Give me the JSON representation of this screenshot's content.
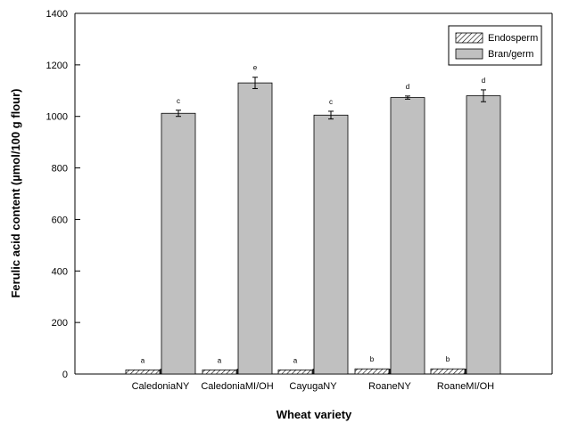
{
  "chart_data": {
    "type": "bar",
    "xlabel": "Wheat variety",
    "ylabel": "Ferulic acid content (µmol/100 g flour)",
    "ylim": [
      0,
      1400
    ],
    "yticks": [
      0,
      200,
      400,
      600,
      800,
      1000,
      1200,
      1400
    ],
    "grid": false,
    "legend_position": "top-right",
    "categories": [
      "CaledoniaNY",
      "CaledoniaMI/OH",
      "CayugaNY",
      "RoaneNY",
      "RoaneMI/OH"
    ],
    "series": [
      {
        "name": "Endosperm",
        "fill": "hatched",
        "values": [
          16,
          16,
          16,
          20,
          20
        ],
        "errors": [
          0,
          0,
          0,
          0,
          0
        ],
        "labels": [
          "a",
          "a",
          "a",
          "b",
          "b"
        ]
      },
      {
        "name": "Bran/germ",
        "color": "#c0c0c0",
        "values": [
          1012,
          1130,
          1005,
          1073,
          1080
        ],
        "errors": [
          12,
          22,
          15,
          6,
          23
        ],
        "labels": [
          "c",
          "e",
          "c",
          "d",
          "d"
        ]
      }
    ]
  }
}
